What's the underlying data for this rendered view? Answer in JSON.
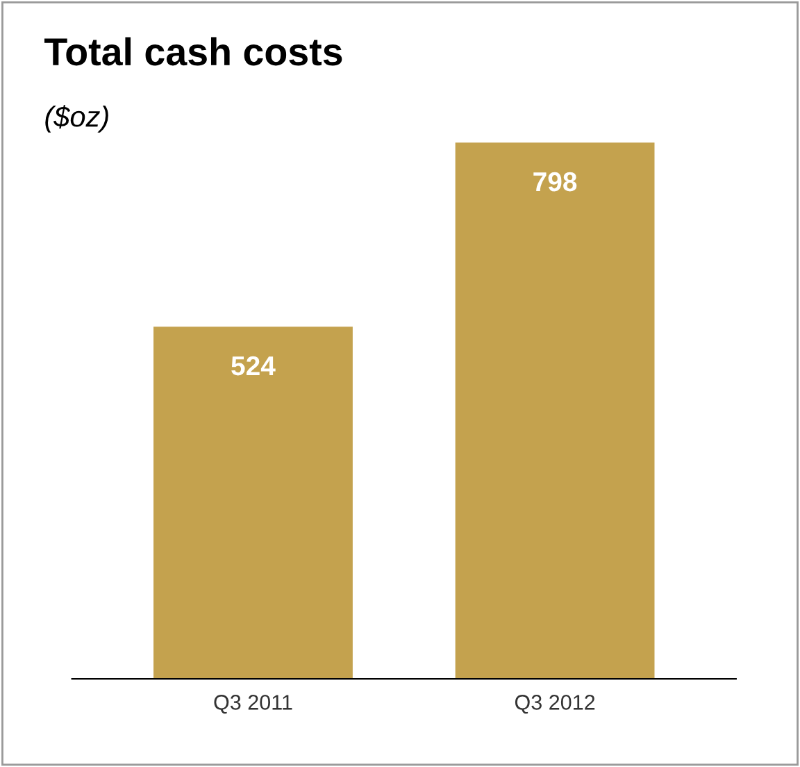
{
  "chart_data": {
    "type": "bar",
    "title": "Total cash costs",
    "subtitle": "($oz)",
    "categories": [
      "Q3 2011",
      "Q3 2012"
    ],
    "values": [
      524,
      798
    ],
    "color": "#c4a24e",
    "data_labels": true,
    "grid": false,
    "legend": false
  }
}
